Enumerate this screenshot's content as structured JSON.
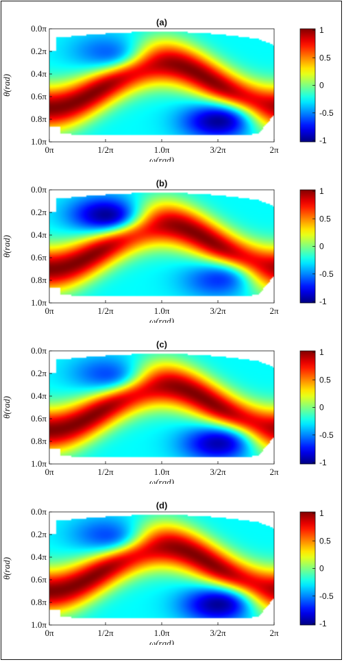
{
  "chart_data": [
    {
      "type": "heatmap",
      "title": "(a)",
      "xlabel": "ω(rad)",
      "ylabel": "θ(rad)",
      "xlim": [
        0,
        2
      ],
      "ylim": [
        0,
        1
      ],
      "x_ticks": [
        "0π",
        "1/2π",
        "1.0π",
        "3/2π",
        "2π"
      ],
      "y_ticks": [
        "0.0π",
        "0.2π",
        "0.4π",
        "0.6π",
        "0.8π",
        "1.0π"
      ],
      "colorbar": {
        "min": -1,
        "max": 1,
        "ticks": [
          "1",
          "0.5",
          "0",
          "-0.5",
          "-1"
        ],
        "colormap": "jet"
      },
      "ridge": {
        "center_theta_pi": 0.5,
        "amplitude_pi": 0.2,
        "phase": "sin",
        "width_pi": 0.14
      },
      "troughs": [
        {
          "omega_pi": 0.5,
          "theta_pi": 0.2,
          "value": -0.55
        },
        {
          "omega_pi": 1.5,
          "theta_pi": 0.82,
          "value": -0.95
        }
      ]
    },
    {
      "type": "heatmap",
      "title": "(b)",
      "xlabel": "ω(rad)",
      "ylabel": "θ(rad)",
      "xlim": [
        0,
        2
      ],
      "ylim": [
        0,
        1
      ],
      "x_ticks": [
        "0π",
        "1/2π",
        "1.0π",
        "3/2π",
        "2π"
      ],
      "y_ticks": [
        "0.0π",
        "0.2π",
        "0.4π",
        "0.6π",
        "0.8π",
        "1.0π"
      ],
      "colorbar": {
        "min": -1,
        "max": 1,
        "ticks": [
          "1",
          "0.5",
          "0",
          "-0.5",
          "-1"
        ],
        "colormap": "jet"
      },
      "ridge": {
        "center_theta_pi": 0.5,
        "amplitude_pi": 0.2,
        "phase": "sin",
        "width_pi": 0.14
      },
      "troughs": [
        {
          "omega_pi": 0.5,
          "theta_pi": 0.22,
          "value": -0.95
        },
        {
          "omega_pi": 1.5,
          "theta_pi": 0.8,
          "value": -0.65
        }
      ]
    },
    {
      "type": "heatmap",
      "title": "(c)",
      "xlabel": "ω(rad)",
      "ylabel": "θ(rad)",
      "xlim": [
        0,
        2
      ],
      "ylim": [
        0,
        1
      ],
      "x_ticks": [
        "0π",
        "1/2π",
        "1.0π",
        "3/2π",
        "2π"
      ],
      "y_ticks": [
        "0.0π",
        "0.2π",
        "0.4π",
        "0.6π",
        "0.8π",
        "1.0π"
      ],
      "colorbar": {
        "min": -1,
        "max": 1,
        "ticks": [
          "1",
          "0.5",
          "0",
          "-0.5",
          "-1"
        ],
        "colormap": "jet"
      },
      "ridge": {
        "center_theta_pi": 0.5,
        "amplitude_pi": 0.2,
        "phase": "sin",
        "width_pi": 0.14
      },
      "troughs": [
        {
          "omega_pi": 0.5,
          "theta_pi": 0.2,
          "value": -0.6
        },
        {
          "omega_pi": 1.5,
          "theta_pi": 0.82,
          "value": -0.9
        }
      ]
    },
    {
      "type": "heatmap",
      "title": "(d)",
      "xlabel": "ω(rad)",
      "ylabel": "θ(rad)",
      "xlim": [
        0,
        2
      ],
      "ylim": [
        0,
        1
      ],
      "x_ticks": [
        "0π",
        "1/2π",
        "1.0π",
        "3/2π",
        "2π"
      ],
      "y_ticks": [
        "0.0π",
        "0.2π",
        "0.4π",
        "0.6π",
        "0.8π",
        "1.0π"
      ],
      "colorbar": {
        "min": -1,
        "max": 1,
        "ticks": [
          "1",
          "0.5",
          "0",
          "-0.5",
          "-1"
        ],
        "colormap": "jet"
      },
      "ridge": {
        "center_theta_pi": 0.5,
        "amplitude_pi": 0.2,
        "phase": "sin",
        "width_pi": 0.14
      },
      "troughs": [
        {
          "omega_pi": 0.5,
          "theta_pi": 0.2,
          "value": -0.6
        },
        {
          "omega_pi": 1.5,
          "theta_pi": 0.82,
          "value": -0.95
        }
      ]
    }
  ]
}
